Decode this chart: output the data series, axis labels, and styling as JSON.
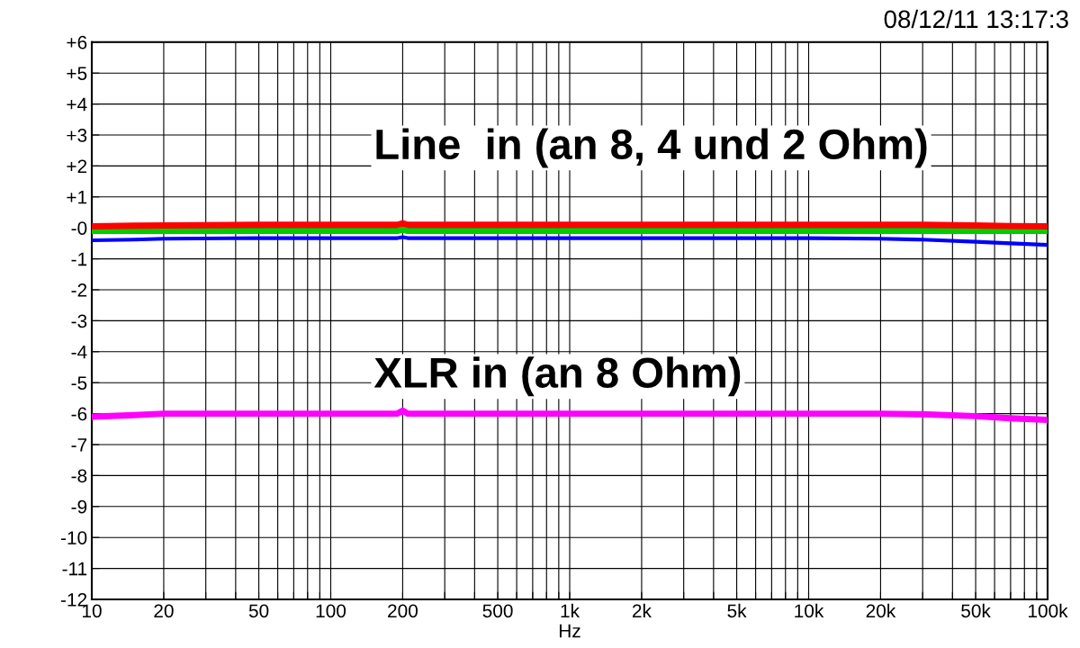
{
  "chart_data": {
    "type": "line",
    "xlabel": "Hz",
    "log": "x",
    "grid": true,
    "marker": "none",
    "line_style": "solid",
    "annotations": [
      "08/12/11 13:17:3",
      "Line  in (an 8, 4 und 2 Ohm)",
      "XLR in (an 8 Ohm)"
    ],
    "xlim": [
      10,
      100000
    ],
    "ylim": [
      -12,
      6
    ],
    "xticks": [
      {
        "value": 10,
        "label": "10"
      },
      {
        "value": 20,
        "label": "20"
      },
      {
        "value": 30,
        "label": null
      },
      {
        "value": 40,
        "label": null
      },
      {
        "value": 50,
        "label": "50"
      },
      {
        "value": 60,
        "label": null
      },
      {
        "value": 70,
        "label": null
      },
      {
        "value": 80,
        "label": null
      },
      {
        "value": 90,
        "label": null
      },
      {
        "value": 100,
        "label": "100"
      },
      {
        "value": 200,
        "label": "200"
      },
      {
        "value": 300,
        "label": null
      },
      {
        "value": 400,
        "label": null
      },
      {
        "value": 500,
        "label": "500"
      },
      {
        "value": 600,
        "label": null
      },
      {
        "value": 700,
        "label": null
      },
      {
        "value": 800,
        "label": null
      },
      {
        "value": 900,
        "label": null
      },
      {
        "value": 1000,
        "label": "1k"
      },
      {
        "value": 2000,
        "label": "2k"
      },
      {
        "value": 3000,
        "label": null
      },
      {
        "value": 4000,
        "label": null
      },
      {
        "value": 5000,
        "label": "5k"
      },
      {
        "value": 6000,
        "label": null
      },
      {
        "value": 7000,
        "label": null
      },
      {
        "value": 8000,
        "label": null
      },
      {
        "value": 9000,
        "label": null
      },
      {
        "value": 10000,
        "label": "10k"
      },
      {
        "value": 20000,
        "label": "20k"
      },
      {
        "value": 30000,
        "label": null
      },
      {
        "value": 40000,
        "label": null
      },
      {
        "value": 50000,
        "label": "50k"
      },
      {
        "value": 60000,
        "label": null
      },
      {
        "value": 70000,
        "label": null
      },
      {
        "value": 80000,
        "label": null
      },
      {
        "value": 90000,
        "label": null
      },
      {
        "value": 100000,
        "label": "100k"
      }
    ],
    "yticks": [
      {
        "value": 6,
        "label": "+6"
      },
      {
        "value": 5,
        "label": "+5"
      },
      {
        "value": 4,
        "label": "+4"
      },
      {
        "value": 3,
        "label": "+3"
      },
      {
        "value": 2,
        "label": "+2"
      },
      {
        "value": 1,
        "label": "+1"
      },
      {
        "value": 0,
        "label": "-0"
      },
      {
        "value": -1,
        "label": "-1"
      },
      {
        "value": -2,
        "label": "-2"
      },
      {
        "value": -3,
        "label": "-3"
      },
      {
        "value": -4,
        "label": "-4"
      },
      {
        "value": -5,
        "label": "-5"
      },
      {
        "value": -6,
        "label": "-6"
      },
      {
        "value": -7,
        "label": "-7"
      },
      {
        "value": -8,
        "label": "-8"
      },
      {
        "value": -9,
        "label": "-9"
      },
      {
        "value": -10,
        "label": "-10"
      },
      {
        "value": -11,
        "label": "-11"
      },
      {
        "value": -12,
        "label": "-12"
      }
    ],
    "x": [
      10,
      15,
      20,
      50,
      100,
      190,
      200,
      210,
      500,
      1000,
      5000,
      10000,
      20000,
      30000,
      50000,
      70000,
      100000
    ],
    "series": [
      {
        "color": "#00cc00",
        "values": [
          -0.1,
          -0.1,
          -0.1,
          -0.1,
          -0.1,
          -0.1,
          -0.05,
          -0.1,
          -0.1,
          -0.1,
          -0.1,
          -0.1,
          -0.1,
          -0.1,
          -0.1,
          -0.1,
          -0.1
        ]
      },
      {
        "color": "#ff0000",
        "values": [
          0.05,
          0.07,
          0.08,
          0.1,
          0.1,
          0.1,
          0.15,
          0.1,
          0.1,
          0.1,
          0.1,
          0.1,
          0.1,
          0.1,
          0.08,
          0.06,
          0.05
        ]
      },
      {
        "color": "#0000ff",
        "values": [
          -0.4,
          -0.38,
          -0.35,
          -0.33,
          -0.33,
          -0.33,
          -0.3,
          -0.33,
          -0.33,
          -0.33,
          -0.33,
          -0.33,
          -0.35,
          -0.38,
          -0.45,
          -0.5,
          -0.55
        ]
      },
      {
        "color": "#ff00ff",
        "values": [
          -6.1,
          -6.05,
          -6.0,
          -6.0,
          -6.0,
          -6.0,
          -5.9,
          -6.0,
          -6.0,
          -6.0,
          -6.0,
          -6.0,
          -6.0,
          -6.02,
          -6.08,
          -6.15,
          -6.2
        ]
      }
    ]
  }
}
